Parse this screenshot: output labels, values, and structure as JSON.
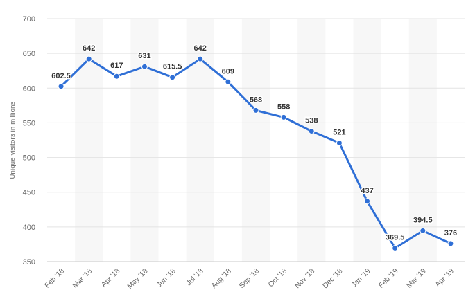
{
  "chart_data": {
    "type": "line",
    "categories": [
      "Feb '18",
      "Mar '18",
      "Apr '18",
      "May '18",
      "Jun '18",
      "Jul '18",
      "Aug '18",
      "Sep '18",
      "Oct '18",
      "Nov '18",
      "Dec '18",
      "Jan '19",
      "Feb '19",
      "Mar '19",
      "Apr '19"
    ],
    "values": [
      602.5,
      642,
      617,
      631,
      615.5,
      642,
      609,
      568,
      558,
      538,
      521,
      437,
      369.5,
      394.5,
      376
    ],
    "data_labels": [
      "602.5",
      "642",
      "617",
      "631",
      "615.5",
      "642",
      "609",
      "568",
      "558",
      "538",
      "521",
      "437",
      "369.5",
      "394.5",
      "376"
    ],
    "title": "",
    "xlabel": "",
    "ylabel": "Unique visitors in millions",
    "ylim": [
      350,
      700
    ],
    "yticks": [
      350,
      400,
      450,
      500,
      550,
      600,
      650,
      700
    ],
    "grid": true,
    "alternating_column_bands": true,
    "line_color": "#2f6fd6",
    "band_color": "#f7f7f7",
    "grid_color": "#e3e3e3",
    "axis_color": "#c8c8c8"
  }
}
